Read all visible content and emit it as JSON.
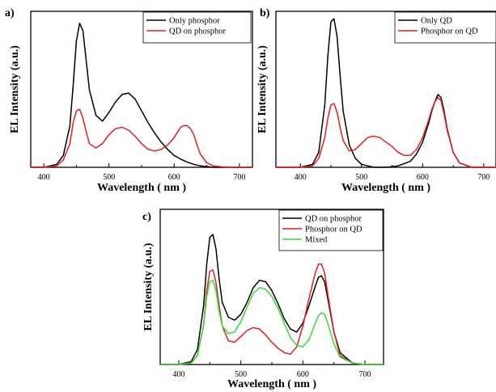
{
  "chart_data": [
    {
      "panel": "a)",
      "type": "line",
      "xlabel": "Wavelength ( nm )",
      "ylabel": "EL Intensity (a.u.)",
      "xlim": [
        380,
        720
      ],
      "ylim": [
        0,
        1.05
      ],
      "xticks": [
        400,
        500,
        600,
        700
      ],
      "yticks": [],
      "grid": false,
      "legend": "top-right",
      "series": [
        {
          "name": "Only phosphor",
          "color": "#000000",
          "x": [
            380,
            400,
            420,
            430,
            440,
            445,
            450,
            455,
            460,
            465,
            470,
            480,
            490,
            500,
            510,
            520,
            530,
            540,
            550,
            560,
            570,
            580,
            590,
            600,
            610,
            620,
            630,
            640,
            660,
            680,
            700,
            720
          ],
          "y": [
            0.0,
            0.0,
            0.02,
            0.08,
            0.28,
            0.55,
            0.85,
            0.97,
            0.92,
            0.72,
            0.52,
            0.35,
            0.31,
            0.37,
            0.44,
            0.49,
            0.5,
            0.46,
            0.38,
            0.3,
            0.23,
            0.17,
            0.12,
            0.08,
            0.055,
            0.035,
            0.02,
            0.01,
            0.0,
            0.0,
            0.0,
            0.0
          ]
        },
        {
          "name": "QD on phosphor",
          "color": "#e02020",
          "x": [
            380,
            400,
            420,
            430,
            440,
            445,
            450,
            455,
            460,
            465,
            470,
            480,
            490,
            500,
            510,
            520,
            530,
            540,
            550,
            560,
            570,
            580,
            590,
            600,
            610,
            615,
            620,
            625,
            630,
            635,
            640,
            650,
            660,
            680,
            700,
            720
          ],
          "y": [
            0.0,
            0.0,
            0.01,
            0.05,
            0.16,
            0.3,
            0.38,
            0.39,
            0.33,
            0.24,
            0.16,
            0.13,
            0.16,
            0.22,
            0.26,
            0.27,
            0.25,
            0.21,
            0.16,
            0.12,
            0.11,
            0.12,
            0.15,
            0.2,
            0.27,
            0.28,
            0.28,
            0.26,
            0.22,
            0.15,
            0.09,
            0.03,
            0.01,
            0.0,
            0.0,
            0.0
          ]
        }
      ]
    },
    {
      "panel": "b)",
      "type": "line",
      "xlabel": "Wavelength ( nm )",
      "ylabel": "EL Intensity (a.u.)",
      "xlim": [
        360,
        720
      ],
      "ylim": [
        0,
        1.05
      ],
      "xticks": [
        400,
        500,
        600,
        700
      ],
      "yticks": [],
      "grid": false,
      "legend": "top-right",
      "series": [
        {
          "name": "Only QD",
          "color": "#000000",
          "x": [
            360,
            400,
            420,
            430,
            440,
            445,
            450,
            455,
            460,
            465,
            470,
            480,
            490,
            500,
            520,
            540,
            560,
            580,
            590,
            600,
            610,
            615,
            620,
            625,
            630,
            635,
            640,
            650,
            660,
            680,
            720
          ],
          "y": [
            0.0,
            0.0,
            0.02,
            0.1,
            0.42,
            0.75,
            0.98,
            1.0,
            0.88,
            0.62,
            0.38,
            0.15,
            0.06,
            0.02,
            0.0,
            0.0,
            0.01,
            0.04,
            0.09,
            0.17,
            0.3,
            0.38,
            0.44,
            0.49,
            0.47,
            0.38,
            0.26,
            0.1,
            0.03,
            0.0,
            0.0
          ]
        },
        {
          "name": "Phosphor on QD",
          "color": "#e02020",
          "x": [
            360,
            400,
            420,
            430,
            440,
            445,
            450,
            455,
            460,
            465,
            470,
            480,
            490,
            500,
            510,
            520,
            530,
            540,
            550,
            560,
            570,
            580,
            590,
            600,
            610,
            615,
            620,
            625,
            630,
            635,
            640,
            650,
            660,
            680,
            720
          ],
          "y": [
            0.0,
            0.0,
            0.01,
            0.06,
            0.2,
            0.33,
            0.42,
            0.43,
            0.37,
            0.27,
            0.18,
            0.11,
            0.12,
            0.16,
            0.2,
            0.21,
            0.2,
            0.17,
            0.14,
            0.1,
            0.08,
            0.08,
            0.12,
            0.2,
            0.32,
            0.39,
            0.44,
            0.47,
            0.45,
            0.36,
            0.25,
            0.1,
            0.03,
            0.0,
            0.0
          ]
        }
      ]
    },
    {
      "panel": "c)",
      "type": "line",
      "xlabel": "Wavelength ( nm )",
      "ylabel": "EL Intensity (a.u.)",
      "xlim": [
        370,
        730
      ],
      "ylim": [
        0,
        1.05
      ],
      "xticks": [
        400,
        500,
        600,
        700
      ],
      "yticks": [],
      "grid": false,
      "legend": "top-right",
      "series": [
        {
          "name": "QD on phosphor",
          "color": "#000000",
          "x": [
            370,
            400,
            420,
            430,
            440,
            445,
            450,
            455,
            460,
            465,
            470,
            480,
            490,
            500,
            510,
            520,
            530,
            540,
            550,
            560,
            570,
            580,
            590,
            600,
            610,
            620,
            625,
            630,
            635,
            640,
            650,
            660,
            680,
            700,
            730
          ],
          "y": [
            0.0,
            0.0,
            0.02,
            0.1,
            0.4,
            0.68,
            0.86,
            0.88,
            0.78,
            0.58,
            0.42,
            0.32,
            0.3,
            0.34,
            0.42,
            0.52,
            0.57,
            0.56,
            0.5,
            0.41,
            0.31,
            0.24,
            0.22,
            0.28,
            0.4,
            0.53,
            0.59,
            0.6,
            0.56,
            0.45,
            0.22,
            0.08,
            0.01,
            0.0,
            0.0
          ]
        },
        {
          "name": "Phosphor on QD",
          "color": "#e02020",
          "x": [
            370,
            400,
            420,
            430,
            440,
            445,
            450,
            455,
            460,
            465,
            470,
            480,
            490,
            500,
            510,
            520,
            530,
            540,
            550,
            560,
            570,
            580,
            590,
            600,
            610,
            620,
            625,
            630,
            635,
            640,
            650,
            660,
            680,
            700,
            730
          ],
          "y": [
            0.0,
            0.0,
            0.01,
            0.06,
            0.27,
            0.5,
            0.63,
            0.64,
            0.55,
            0.4,
            0.26,
            0.16,
            0.15,
            0.19,
            0.23,
            0.25,
            0.24,
            0.2,
            0.15,
            0.11,
            0.08,
            0.07,
            0.12,
            0.26,
            0.45,
            0.62,
            0.68,
            0.68,
            0.62,
            0.48,
            0.22,
            0.06,
            0.01,
            0.0,
            0.0
          ]
        },
        {
          "name": "Mixed",
          "color": "#33dd33",
          "x": [
            370,
            400,
            420,
            430,
            440,
            445,
            450,
            455,
            460,
            465,
            470,
            480,
            490,
            500,
            510,
            520,
            530,
            540,
            550,
            560,
            570,
            580,
            590,
            600,
            610,
            620,
            625,
            630,
            635,
            640,
            650,
            660,
            680,
            700,
            730
          ],
          "y": [
            0.0,
            0.0,
            0.01,
            0.06,
            0.27,
            0.46,
            0.56,
            0.57,
            0.5,
            0.36,
            0.26,
            0.21,
            0.22,
            0.29,
            0.39,
            0.48,
            0.52,
            0.51,
            0.46,
            0.38,
            0.28,
            0.18,
            0.13,
            0.12,
            0.17,
            0.28,
            0.33,
            0.35,
            0.34,
            0.28,
            0.14,
            0.05,
            0.01,
            0.0,
            0.0
          ]
        }
      ]
    }
  ]
}
